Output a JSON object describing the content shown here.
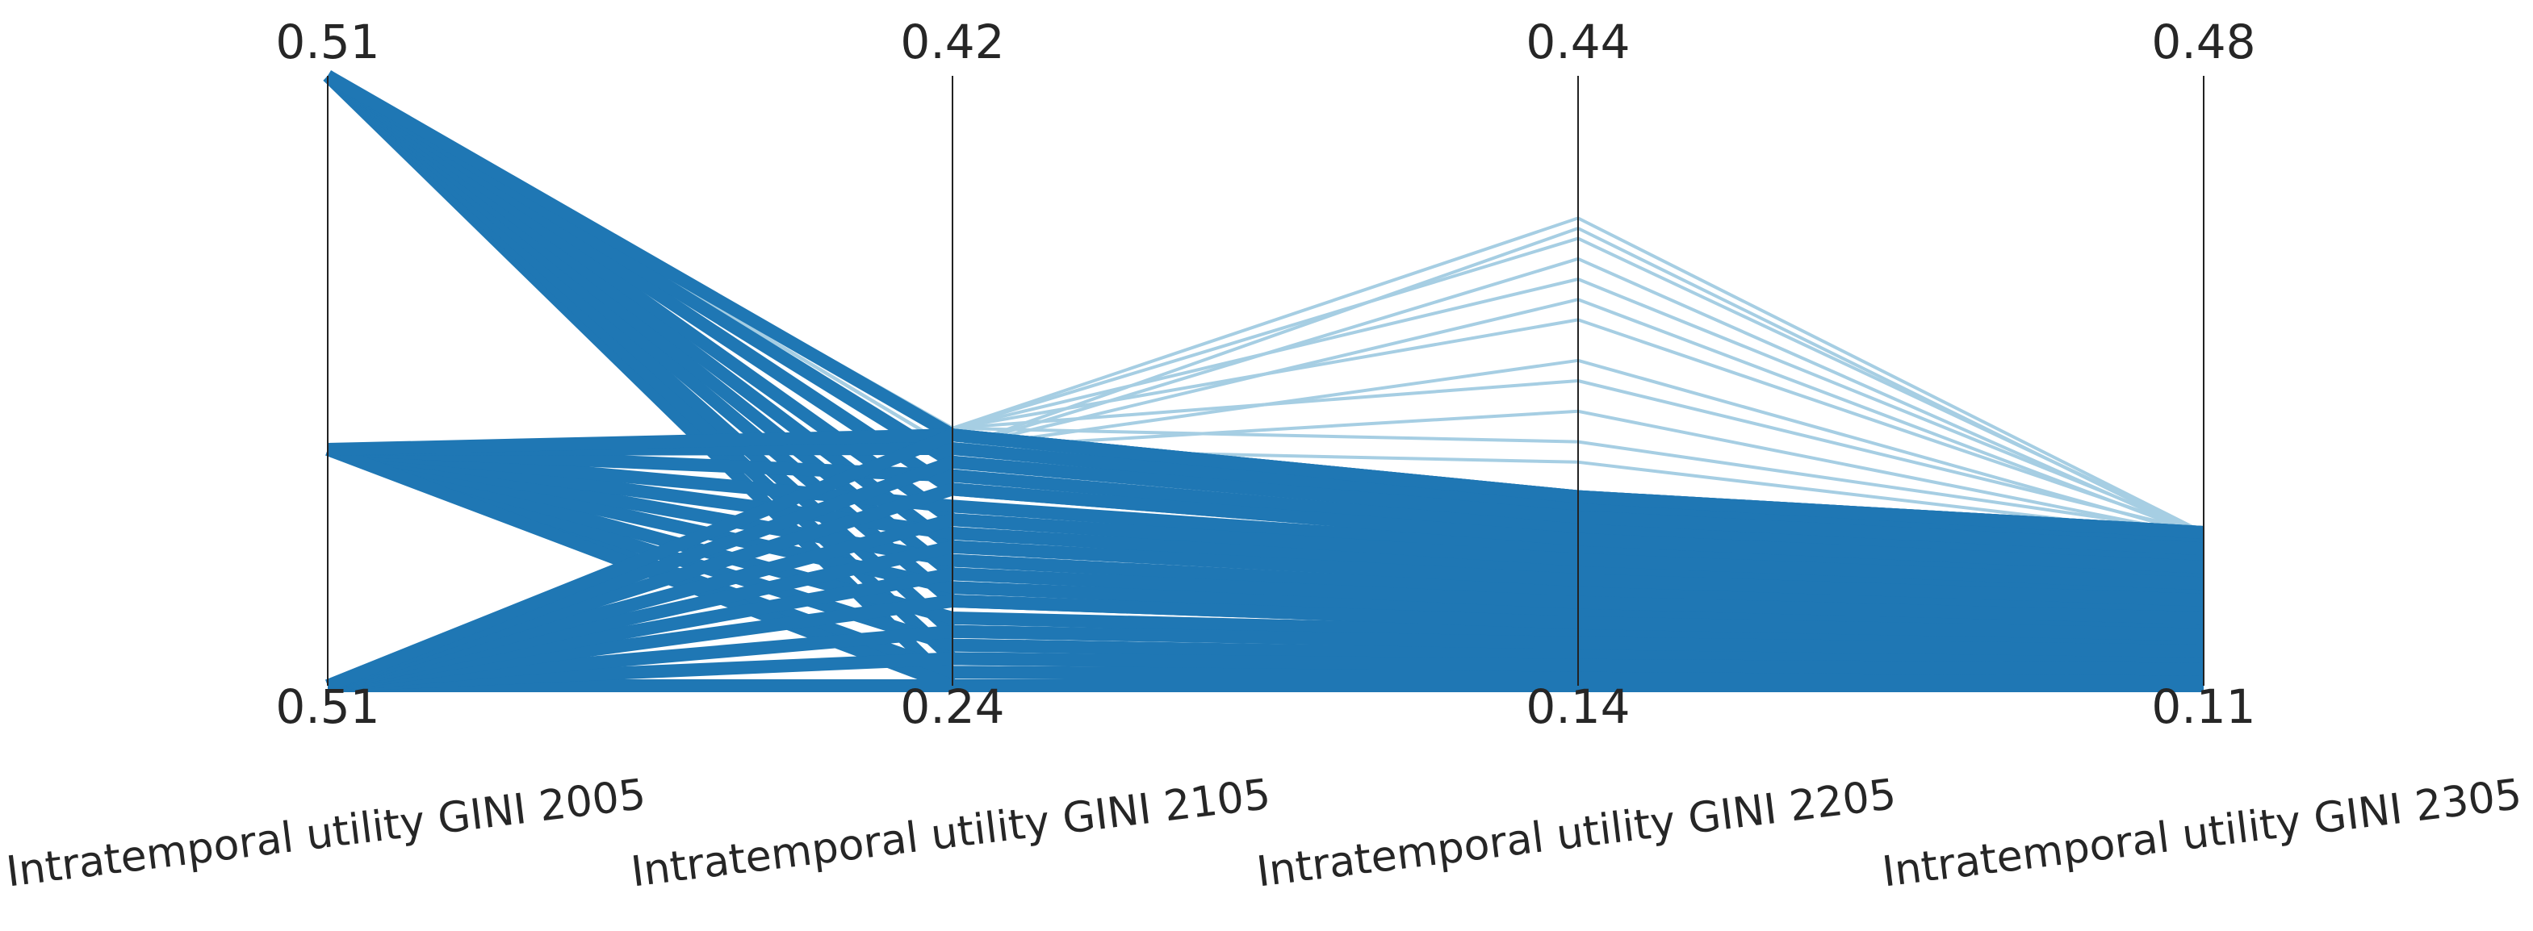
{
  "chart_data": {
    "type": "parallel",
    "axes": [
      {
        "label": "Intratemporal utility GINI 2005",
        "lim": [
          0.506,
          0.514
        ],
        "ticks": [
          {
            "value": 0.506,
            "label": "0.51"
          },
          {
            "value": 0.514,
            "label": "0.51"
          }
        ]
      },
      {
        "label": "Intratemporal utility GINI 2105",
        "lim": [
          0.24,
          0.42
        ],
        "ticks": [
          0.24,
          0.42
        ]
      },
      {
        "label": "Intratemporal utility GINI 2205",
        "lim": [
          0.14,
          0.44
        ],
        "ticks": [
          0.14,
          0.44
        ]
      },
      {
        "label": "Intratemporal utility GINI 2305",
        "lim": [
          0.11,
          0.48
        ],
        "ticks": [
          0.11,
          0.48
        ]
      }
    ],
    "series": [
      {
        "color": "#a6cee3",
        "lines": [
          [
            0.514,
            0.316,
            0.37,
            0.203
          ],
          [
            0.514,
            0.31,
            0.365,
            0.201
          ],
          [
            0.514,
            0.316,
            0.36,
            0.203
          ],
          [
            0.514,
            0.31,
            0.35,
            0.201
          ],
          [
            0.514,
            0.316,
            0.34,
            0.203
          ],
          [
            0.514,
            0.31,
            0.33,
            0.201
          ],
          [
            0.514,
            0.316,
            0.32,
            0.203
          ],
          [
            0.514,
            0.31,
            0.3,
            0.201
          ],
          [
            0.514,
            0.316,
            0.29,
            0.203
          ],
          [
            0.514,
            0.31,
            0.275,
            0.201
          ],
          [
            0.514,
            0.316,
            0.26,
            0.203
          ],
          [
            0.514,
            0.31,
            0.25,
            0.201
          ]
        ]
      },
      {
        "color": "#1f77b4",
        "lines": [
          [
            0.514,
            0.24,
            0.14,
            0.11
          ],
          [
            0.514,
            0.248,
            0.15,
            0.12
          ],
          [
            0.514,
            0.256,
            0.161,
            0.131
          ],
          [
            0.514,
            0.265,
            0.171,
            0.141
          ],
          [
            0.514,
            0.273,
            0.181,
            0.151
          ],
          [
            0.514,
            0.281,
            0.192,
            0.162
          ],
          [
            0.514,
            0.289,
            0.202,
            0.172
          ],
          [
            0.514,
            0.298,
            0.212,
            0.182
          ],
          [
            0.514,
            0.306,
            0.223,
            0.193
          ],
          [
            0.514,
            0.314,
            0.233,
            0.203
          ],
          [
            0.5091,
            0.244,
            0.145,
            0.115
          ],
          [
            0.5091,
            0.252,
            0.155,
            0.126
          ],
          [
            0.5091,
            0.26,
            0.166,
            0.136
          ],
          [
            0.5091,
            0.269,
            0.176,
            0.146
          ],
          [
            0.5091,
            0.277,
            0.186,
            0.157
          ],
          [
            0.5091,
            0.285,
            0.197,
            0.167
          ],
          [
            0.5091,
            0.293,
            0.207,
            0.177
          ],
          [
            0.5091,
            0.302,
            0.217,
            0.188
          ],
          [
            0.5091,
            0.31,
            0.228,
            0.198
          ],
          [
            0.5091,
            0.24,
            0.14,
            0.11
          ],
          [
            0.5091,
            0.314,
            0.233,
            0.203
          ],
          [
            0.506,
            0.24,
            0.14,
            0.11
          ],
          [
            0.506,
            0.248,
            0.15,
            0.12
          ],
          [
            0.506,
            0.256,
            0.161,
            0.131
          ],
          [
            0.506,
            0.265,
            0.171,
            0.141
          ],
          [
            0.506,
            0.273,
            0.181,
            0.151
          ],
          [
            0.506,
            0.281,
            0.192,
            0.162
          ],
          [
            0.506,
            0.289,
            0.202,
            0.172
          ],
          [
            0.506,
            0.298,
            0.212,
            0.182
          ],
          [
            0.506,
            0.306,
            0.223,
            0.193
          ],
          [
            0.506,
            0.314,
            0.233,
            0.203
          ]
        ]
      }
    ]
  }
}
